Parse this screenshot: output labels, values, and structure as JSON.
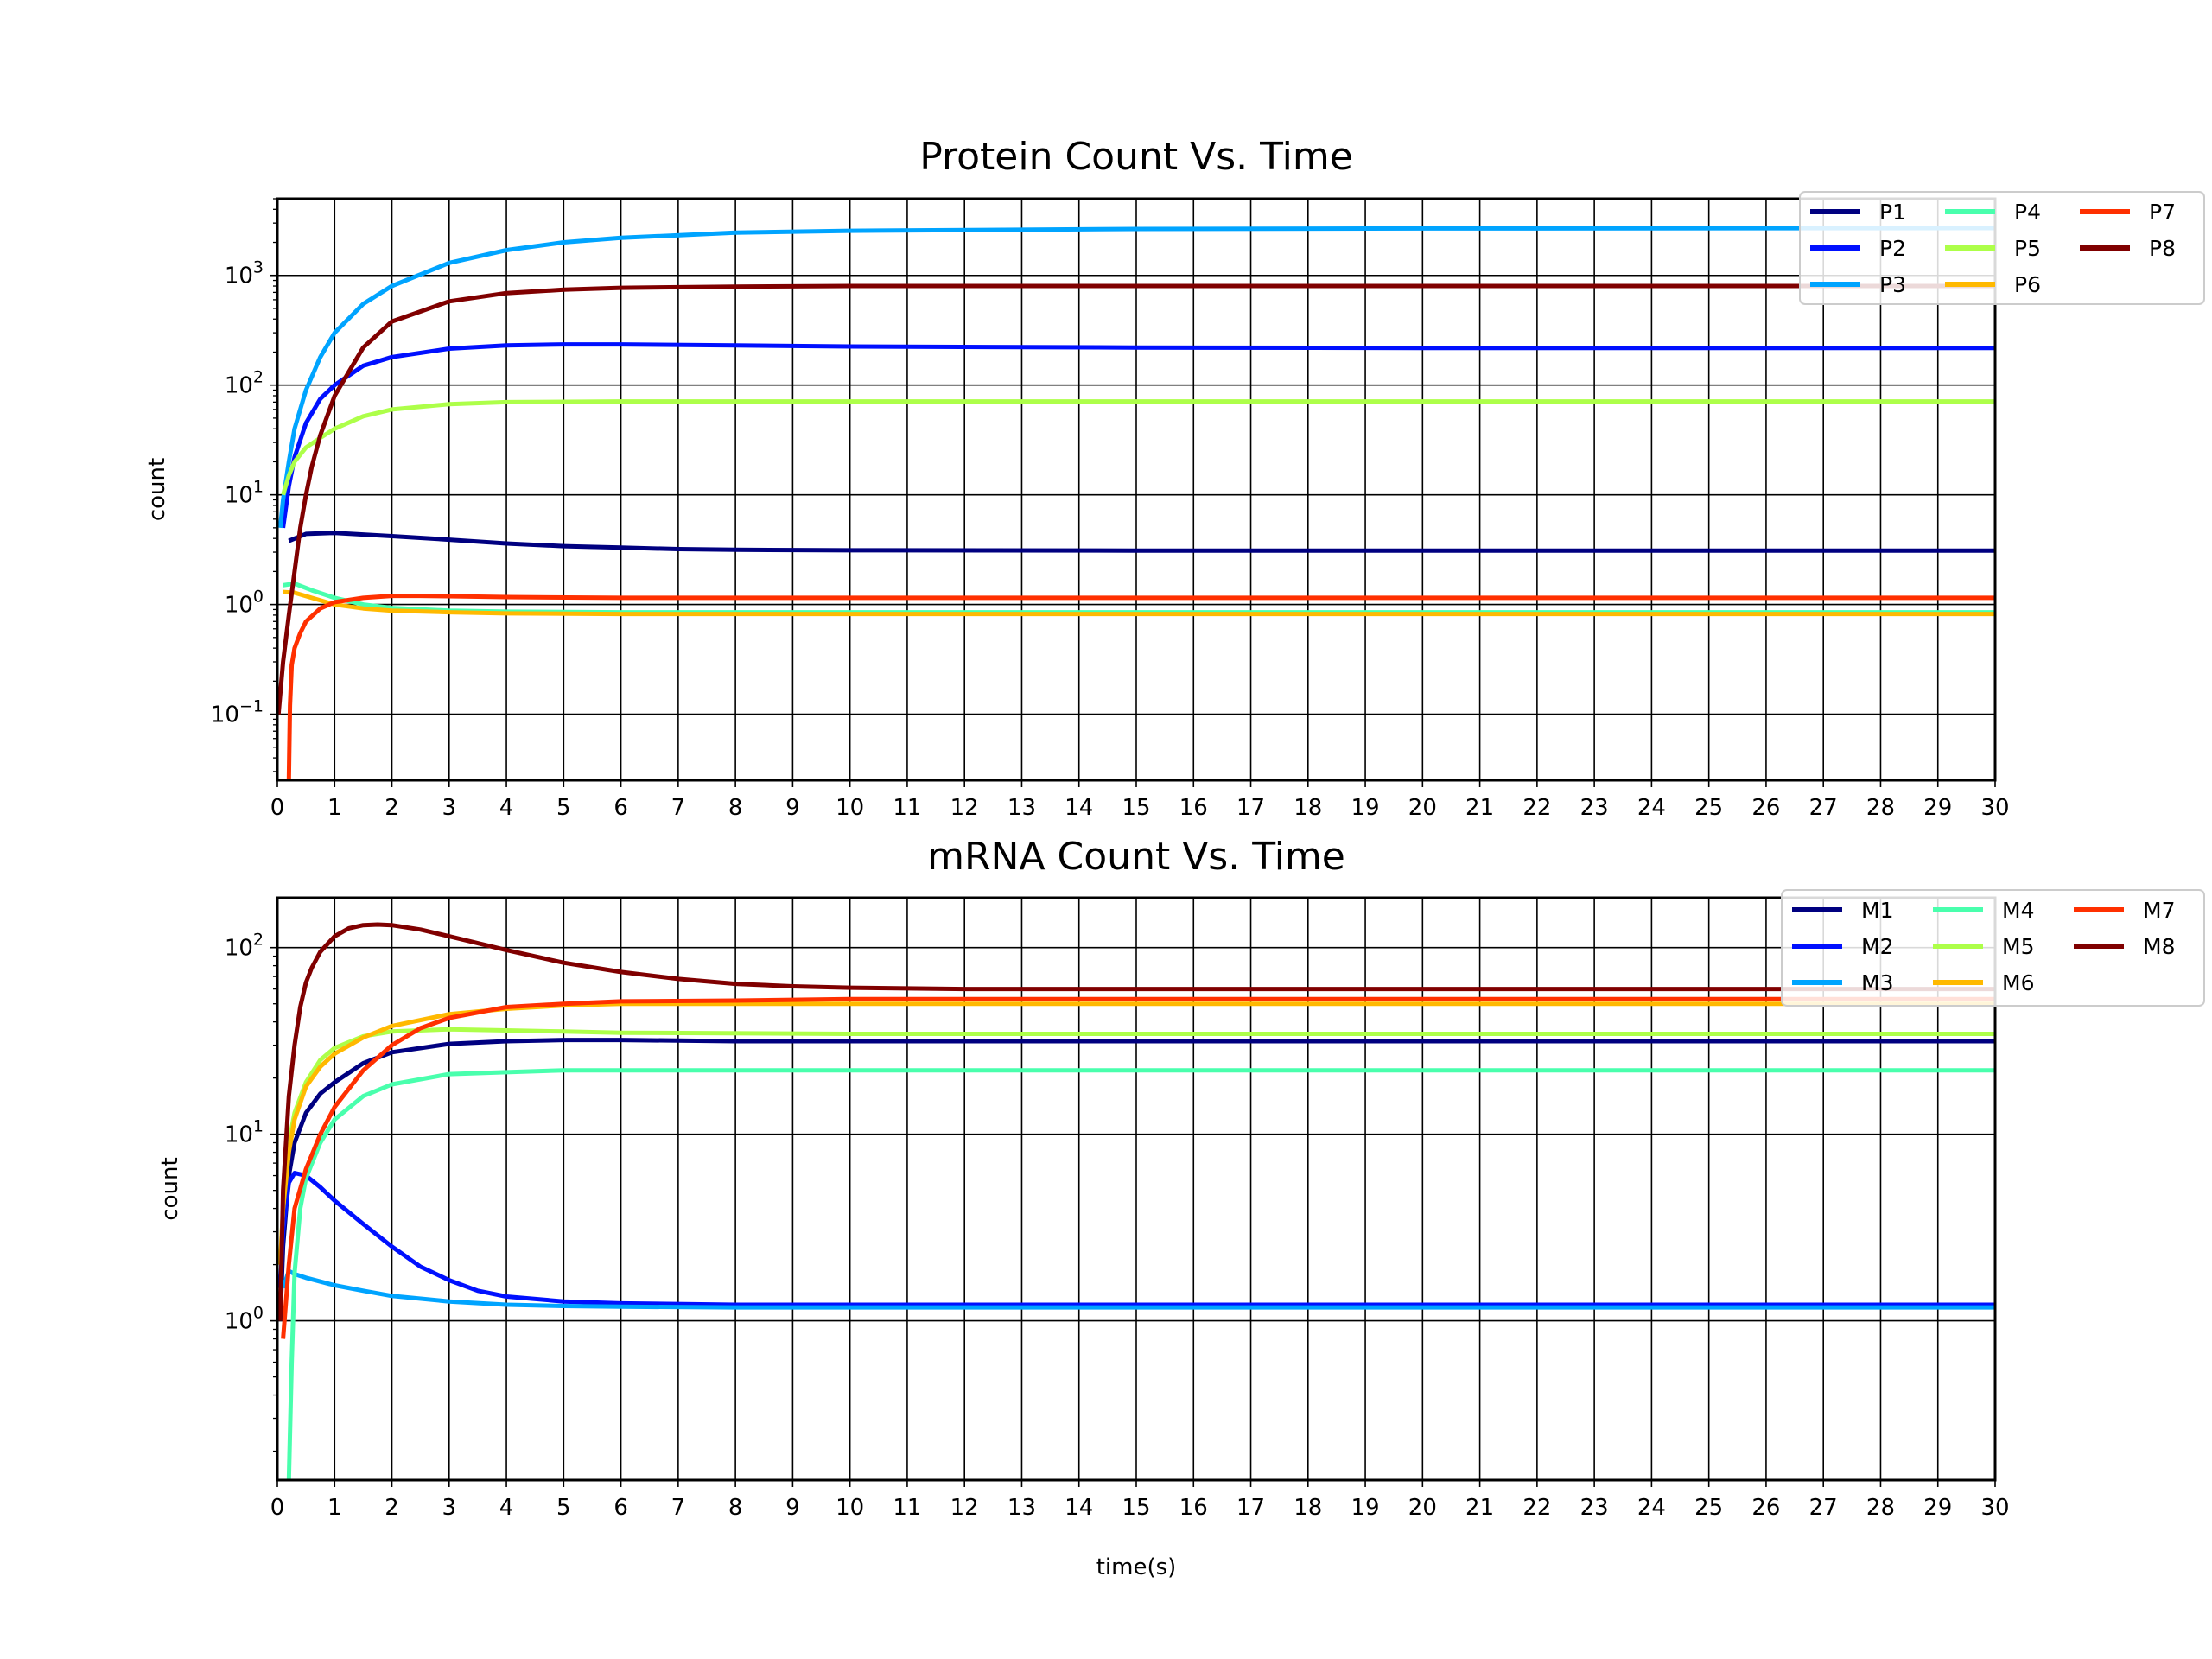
{
  "chart_data": [
    {
      "type": "line",
      "title": "Protein Count Vs. Time",
      "xlabel": "",
      "ylabel": "count",
      "xscale": "linear",
      "yscale": "log",
      "xlim": [
        0,
        30
      ],
      "ylim": [
        0.025,
        5000
      ],
      "grid": true,
      "legend_position": "top-right",
      "legend_columns": 3,
      "xticks": [
        "0",
        "1",
        "2",
        "3",
        "4",
        "5",
        "6",
        "7",
        "8",
        "9",
        "10",
        "11",
        "12",
        "13",
        "14",
        "15",
        "16",
        "17",
        "18",
        "19",
        "20",
        "21",
        "22",
        "23",
        "24",
        "25",
        "26",
        "27",
        "28",
        "29",
        "30"
      ],
      "yticks": [
        {
          "base": "10",
          "exp": "−1"
        },
        {
          "base": "10",
          "exp": "0"
        },
        {
          "base": "10",
          "exp": "1"
        },
        {
          "base": "10",
          "exp": "2"
        },
        {
          "base": "10",
          "exp": "3"
        }
      ],
      "series": [
        {
          "name": "P1",
          "color": "#000080",
          "x": [
            0.2,
            0.5,
            1,
            2,
            3,
            4,
            5,
            6,
            7,
            8,
            10,
            15,
            20,
            30
          ],
          "y": [
            3.8,
            4.4,
            4.5,
            4.2,
            3.9,
            3.6,
            3.4,
            3.3,
            3.2,
            3.15,
            3.12,
            3.1,
            3.1,
            3.1
          ]
        },
        {
          "name": "P2",
          "color": "#0010FF",
          "x": [
            0.1,
            0.2,
            0.3,
            0.5,
            0.75,
            1,
            1.5,
            2,
            3,
            4,
            5,
            6,
            8,
            10,
            15,
            20,
            30
          ],
          "y": [
            5,
            12,
            22,
            45,
            75,
            100,
            150,
            180,
            215,
            230,
            235,
            235,
            230,
            225,
            220,
            218,
            218
          ]
        },
        {
          "name": "P3",
          "color": "#00A4FF",
          "x": [
            0.05,
            0.1,
            0.2,
            0.3,
            0.5,
            0.75,
            1,
            1.5,
            2,
            3,
            4,
            5,
            6,
            8,
            10,
            15,
            20,
            30
          ],
          "y": [
            5,
            9,
            20,
            40,
            90,
            180,
            300,
            550,
            800,
            1300,
            1700,
            2000,
            2200,
            2450,
            2550,
            2650,
            2680,
            2700
          ]
        },
        {
          "name": "P4",
          "color": "#49FFAD",
          "x": [
            0.1,
            0.3,
            0.6,
            1,
            1.5,
            2,
            3,
            4,
            6,
            10,
            30
          ],
          "y": [
            1.5,
            1.55,
            1.35,
            1.15,
            1.0,
            0.93,
            0.88,
            0.86,
            0.85,
            0.85,
            0.85
          ]
        },
        {
          "name": "P5",
          "color": "#ADFF49",
          "x": [
            0.1,
            0.2,
            0.3,
            0.5,
            0.75,
            1,
            1.5,
            2,
            3,
            4,
            6,
            10,
            30
          ],
          "y": [
            10,
            15,
            20,
            27,
            33,
            40,
            52,
            60,
            67,
            70,
            71,
            71,
            71
          ]
        },
        {
          "name": "P6",
          "color": "#FFB900",
          "x": [
            0.1,
            0.3,
            0.6,
            1,
            1.5,
            2,
            3,
            4,
            6,
            10,
            30
          ],
          "y": [
            1.3,
            1.28,
            1.15,
            1.0,
            0.92,
            0.88,
            0.85,
            0.83,
            0.82,
            0.82,
            0.82
          ]
        },
        {
          "name": "P7",
          "color": "#FF3000",
          "x": [
            0.2,
            0.22,
            0.25,
            0.3,
            0.4,
            0.5,
            0.75,
            1,
            1.5,
            2,
            2.5,
            3,
            4,
            6,
            10,
            30
          ],
          "y": [
            0.025,
            0.12,
            0.28,
            0.4,
            0.55,
            0.7,
            0.92,
            1.05,
            1.15,
            1.2,
            1.2,
            1.19,
            1.17,
            1.15,
            1.15,
            1.15
          ]
        },
        {
          "name": "P8",
          "color": "#800000",
          "x": [
            0.02,
            0.1,
            0.2,
            0.3,
            0.4,
            0.5,
            0.6,
            0.75,
            1,
            1.5,
            2,
            3,
            4,
            5,
            6,
            8,
            10,
            30
          ],
          "y": [
            0.1,
            0.3,
            0.8,
            2,
            5,
            10,
            18,
            35,
            80,
            220,
            380,
            580,
            690,
            740,
            770,
            790,
            800,
            800
          ]
        }
      ]
    },
    {
      "type": "line",
      "title": "mRNA Count Vs. Time",
      "xlabel": "time(s)",
      "ylabel": "count",
      "xscale": "linear",
      "yscale": "log",
      "xlim": [
        0,
        30
      ],
      "ylim": [
        0.14,
        185
      ],
      "grid": true,
      "legend_position": "top-right",
      "legend_columns": 3,
      "xticks": [
        "0",
        "1",
        "2",
        "3",
        "4",
        "5",
        "6",
        "7",
        "8",
        "9",
        "10",
        "11",
        "12",
        "13",
        "14",
        "15",
        "16",
        "17",
        "18",
        "19",
        "20",
        "21",
        "22",
        "23",
        "24",
        "25",
        "26",
        "27",
        "28",
        "29",
        "30"
      ],
      "yticks": [
        {
          "base": "10",
          "exp": "0"
        },
        {
          "base": "10",
          "exp": "1"
        },
        {
          "base": "10",
          "exp": "2"
        }
      ],
      "series": [
        {
          "name": "M1",
          "color": "#000080",
          "x": [
            0.05,
            0.1,
            0.2,
            0.3,
            0.5,
            0.75,
            1,
            1.5,
            2,
            3,
            4,
            5,
            6,
            8,
            10,
            30
          ],
          "y": [
            1,
            2.5,
            6,
            9,
            13,
            16.5,
            19,
            24,
            27.5,
            30.5,
            31.5,
            32,
            32,
            31.5,
            31.5,
            31.5
          ]
        },
        {
          "name": "M2",
          "color": "#0010FF",
          "x": [
            0.05,
            0.1,
            0.2,
            0.3,
            0.5,
            0.75,
            1,
            1.5,
            2,
            2.5,
            3,
            3.5,
            4,
            5,
            6,
            8,
            10,
            30
          ],
          "y": [
            1.5,
            3,
            5.5,
            6.2,
            6.0,
            5.2,
            4.4,
            3.3,
            2.5,
            1.95,
            1.65,
            1.45,
            1.35,
            1.27,
            1.24,
            1.22,
            1.22,
            1.22
          ]
        },
        {
          "name": "M3",
          "color": "#00A4FF",
          "x": [
            0.1,
            0.2,
            0.3,
            0.5,
            1,
            1.5,
            2,
            3,
            4,
            5,
            6,
            8,
            10,
            30
          ],
          "y": [
            1.5,
            1.85,
            1.78,
            1.7,
            1.55,
            1.45,
            1.36,
            1.27,
            1.22,
            1.2,
            1.19,
            1.18,
            1.18,
            1.18
          ]
        },
        {
          "name": "M4",
          "color": "#49FFAD",
          "x": [
            0.2,
            0.25,
            0.3,
            0.4,
            0.5,
            0.75,
            1,
            1.5,
            2,
            3,
            4,
            5,
            6,
            10,
            30
          ],
          "y": [
            0.14,
            0.6,
            1.8,
            4,
            5.8,
            9,
            12,
            16,
            18.5,
            21,
            21.5,
            22,
            22,
            22,
            22
          ]
        },
        {
          "name": "M5",
          "color": "#ADFF49",
          "x": [
            0.05,
            0.1,
            0.2,
            0.3,
            0.5,
            0.75,
            1,
            1.5,
            2,
            3,
            4,
            5,
            6,
            10,
            30
          ],
          "y": [
            2,
            4,
            9,
            13,
            19,
            25,
            29,
            33.5,
            35.5,
            36.5,
            36,
            35.5,
            35,
            34.5,
            34.5
          ]
        },
        {
          "name": "M6",
          "color": "#FFB900",
          "x": [
            0.05,
            0.1,
            0.2,
            0.3,
            0.5,
            0.75,
            1,
            1.5,
            2,
            3,
            4,
            5,
            6,
            10,
            30
          ],
          "y": [
            2,
            4,
            8,
            12,
            18,
            23,
            27,
            33,
            38,
            44,
            47,
            49,
            50,
            50,
            50
          ]
        },
        {
          "name": "M7",
          "color": "#FF3000",
          "x": [
            0.1,
            0.2,
            0.3,
            0.5,
            0.75,
            1,
            1.5,
            2,
            2.5,
            3,
            4,
            5,
            6,
            8,
            10,
            30
          ],
          "y": [
            0.8,
            2,
            4,
            6.5,
            10,
            14,
            22,
            30,
            37,
            42,
            48,
            50,
            51.5,
            52,
            53,
            53
          ]
        },
        {
          "name": "M8",
          "color": "#800000",
          "x": [
            0.05,
            0.1,
            0.2,
            0.3,
            0.4,
            0.5,
            0.6,
            0.75,
            1,
            1.25,
            1.5,
            1.75,
            2,
            2.5,
            3,
            4,
            5,
            6,
            7,
            8,
            9,
            10,
            12,
            15,
            20,
            30
          ],
          "y": [
            1,
            5,
            16,
            30,
            48,
            65,
            78,
            95,
            115,
            127,
            132,
            133,
            132,
            125,
            115,
            97,
            83,
            74,
            68,
            64,
            62,
            61,
            60,
            60,
            60,
            60
          ]
        }
      ]
    }
  ]
}
